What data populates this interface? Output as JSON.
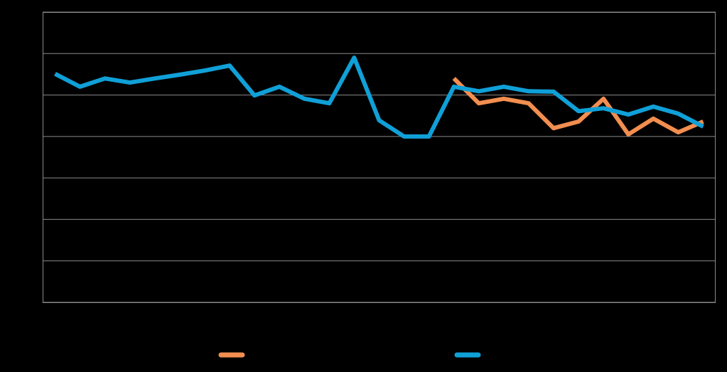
{
  "chart_data": {
    "type": "line",
    "categories": [
      null,
      null,
      null,
      null,
      null,
      null,
      null,
      null,
      null,
      null,
      null,
      null,
      null,
      null,
      null,
      null,
      null,
      null,
      null,
      null,
      null,
      null,
      null,
      null,
      null,
      null,
      null
    ],
    "series": [
      {
        "color": "#f28e4f",
        "values": [
          null,
          null,
          null,
          null,
          null,
          null,
          null,
          null,
          null,
          null,
          null,
          null,
          null,
          null,
          null,
          null,
          5.4,
          4.8,
          4.91,
          4.8,
          4.2,
          4.36,
          4.91,
          4.05,
          4.43,
          4.1,
          4.36
        ]
      },
      {
        "color": "#10a0d8",
        "values": [
          5.51,
          5.2,
          5.4,
          5.3,
          5.4,
          5.49,
          5.59,
          5.71,
          4.99,
          5.2,
          4.91,
          4.8,
          5.9,
          4.39,
          4.0,
          4.0,
          5.2,
          5.09,
          5.2,
          5.09,
          5.08,
          4.61,
          4.68,
          4.53,
          4.72,
          4.55,
          4.24
        ]
      }
    ],
    "ylim": [
      0,
      7
    ],
    "yticks": [
      0,
      1,
      2,
      3,
      4,
      5,
      6,
      7
    ],
    "grid": true,
    "legend": "bottom"
  }
}
